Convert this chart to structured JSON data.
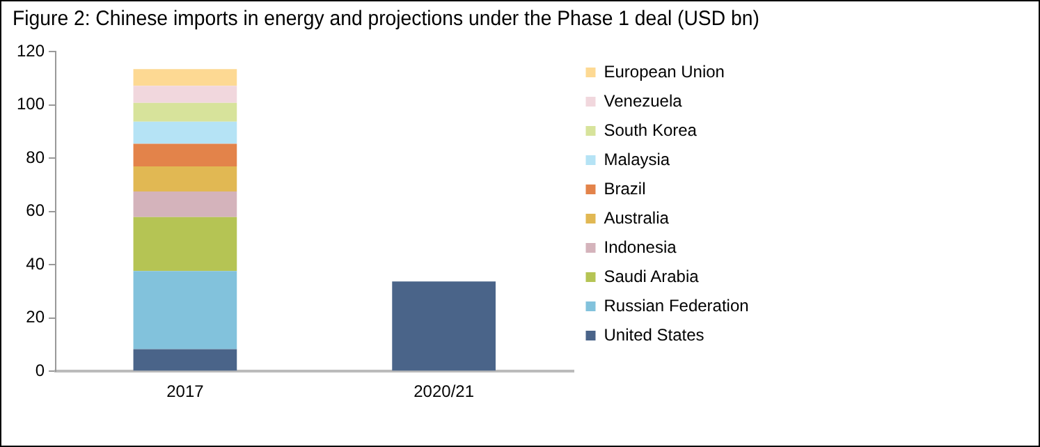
{
  "chart_data": {
    "type": "bar",
    "title": "Figure 2: Chinese imports in energy and projections under the Phase 1 deal (USD bn)",
    "categories": [
      "2017",
      "2020/21"
    ],
    "stacked": true,
    "series": [
      {
        "name": "United States",
        "color": "#4a6489",
        "values": [
          8.3,
          33.7
        ]
      },
      {
        "name": "Russian Federation",
        "color": "#82c2dc",
        "values": [
          29.3,
          null
        ]
      },
      {
        "name": "Saudi Arabia",
        "color": "#b5c454",
        "values": [
          20.3,
          null
        ]
      },
      {
        "name": "Indonesia",
        "color": "#d4b3bb",
        "values": [
          9.6,
          null
        ]
      },
      {
        "name": "Australia",
        "color": "#e1b853",
        "values": [
          9.4,
          null
        ]
      },
      {
        "name": "Brazil",
        "color": "#e3834a",
        "values": [
          8.5,
          null
        ]
      },
      {
        "name": "Malaysia",
        "color": "#b5e3f5",
        "values": [
          8.3,
          null
        ]
      },
      {
        "name": "South Korea",
        "color": "#d7e39b",
        "values": [
          7.0,
          null
        ]
      },
      {
        "name": "Venezuela",
        "color": "#f1d7dd",
        "values": [
          6.4,
          null
        ]
      },
      {
        "name": "European Union",
        "color": "#fdd993",
        "values": [
          6.3,
          null
        ]
      }
    ],
    "ylim": [
      0,
      120
    ],
    "yticks": [
      0,
      20,
      40,
      60,
      80,
      100,
      120
    ],
    "grid": false,
    "legend": "right"
  }
}
